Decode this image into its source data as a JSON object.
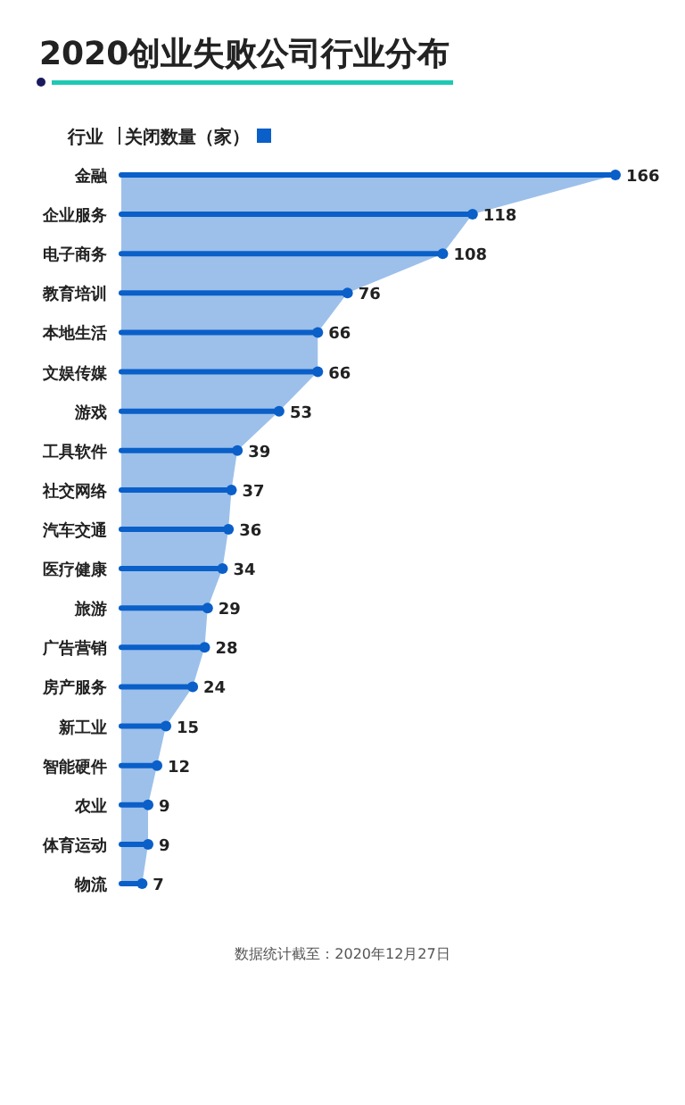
{
  "chart_data": {
    "type": "lollipop",
    "orientation": "horizontal",
    "title": "2020创业失败公司行业分布",
    "ylabel": "行业",
    "legend": "top left",
    "annotations": [
      "数据统计截至：2020年12月27日"
    ],
    "categories": [
      "金融",
      "企业服务",
      "电子商务",
      "教育培训",
      "本地生活",
      "文娱传媒",
      "游戏",
      "工具软件",
      "社交网络",
      "汽车交通",
      "医疗健康",
      "旅游",
      "广告营销",
      "房产服务",
      "新工业",
      "智能硬件",
      "农业",
      "体育运动",
      "物流"
    ],
    "series": [
      {
        "type": "area",
        "color": "#9cc0ea",
        "values": [
          166,
          118,
          108,
          76,
          66,
          66,
          53,
          39,
          37,
          36,
          34,
          29,
          28,
          24,
          15,
          12,
          9,
          9,
          7
        ]
      },
      {
        "name": "关闭数量（家）",
        "data_labels": true,
        "color": "#0a5fc8",
        "values": [
          166,
          118,
          108,
          76,
          66,
          66,
          53,
          39,
          37,
          36,
          34,
          29,
          28,
          24,
          15,
          12,
          9,
          9,
          7
        ]
      }
    ]
  }
}
